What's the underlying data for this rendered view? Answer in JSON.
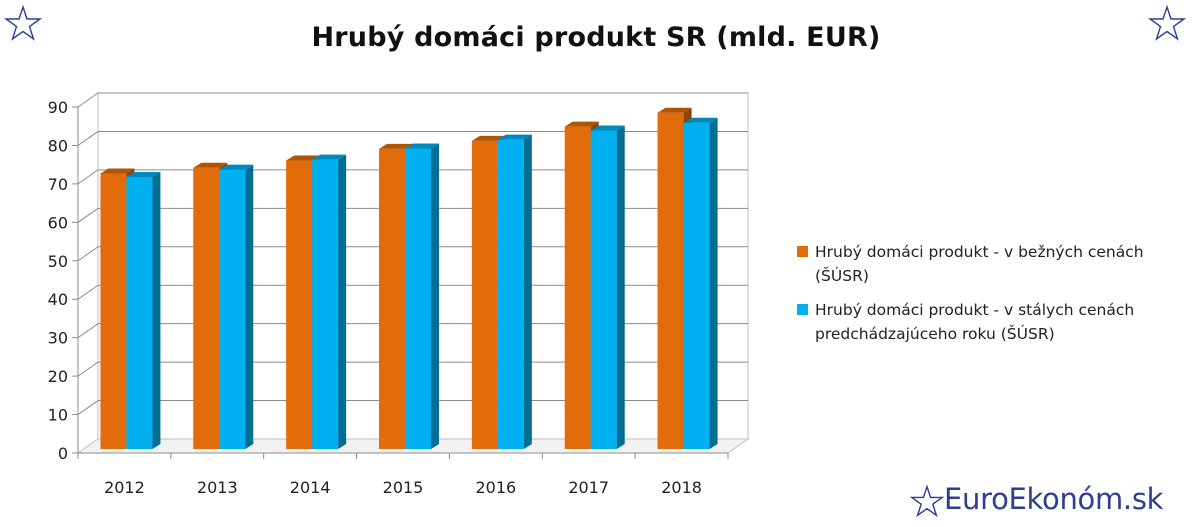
{
  "title": "Hrubý domáci produkt SR (mld. EUR)",
  "brand": "EuroEkonóm.sk",
  "icons": {
    "corner_left": "star-outline-icon",
    "corner_right": "star-outline-icon",
    "brand": "star-outline-icon"
  },
  "colors": {
    "current_prices": "#e36c0a",
    "constant_prices": "#00b0f0",
    "brand": "#2f3f8f"
  },
  "chart_data": {
    "type": "bar",
    "style": "3d-clustered-column",
    "title": "Hrubý domáci produkt SR (mld. EUR)",
    "categories": [
      "2012",
      "2013",
      "2014",
      "2015",
      "2016",
      "2017",
      "2018"
    ],
    "series": [
      {
        "name": "Hrubý domáci produkt - v bežných cenách (ŠÚSR)",
        "color": "#e36c0a",
        "values": [
          72.7,
          74.2,
          76.1,
          79.1,
          81.2,
          84.9,
          88.5
        ]
      },
      {
        "name": "Hrubý domáci produkt - v stálych cenách predchádzajúceho roku (ŠÚSR)",
        "color": "#00b0f0",
        "values": [
          71.8,
          73.7,
          76.3,
          79.2,
          81.5,
          83.9,
          85.9
        ]
      }
    ],
    "yticks": [
      "0",
      "10",
      "20",
      "30",
      "40",
      "50",
      "60",
      "70",
      "80",
      "90"
    ],
    "ylim": [
      0,
      90
    ],
    "xlabel": "",
    "ylabel": "",
    "grid": true,
    "legend": "right"
  }
}
